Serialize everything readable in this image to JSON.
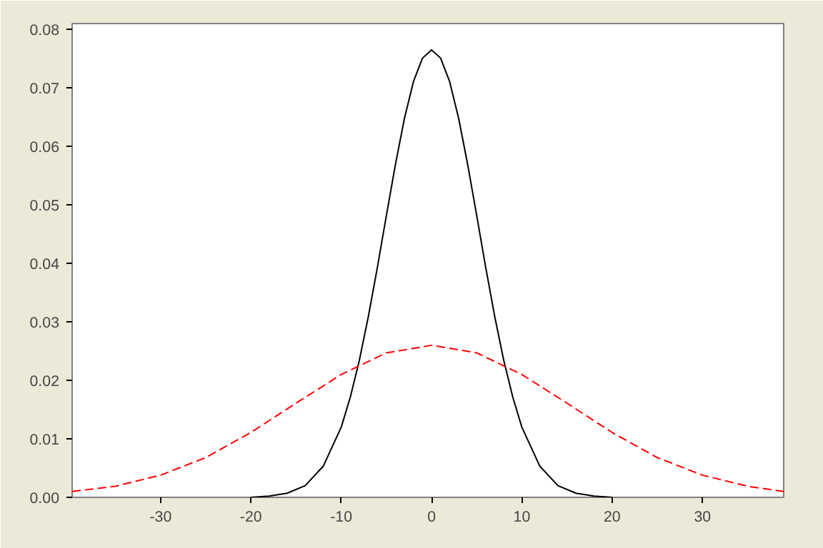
{
  "chart_data": {
    "type": "line",
    "xlim": [
      -39.8,
      39
    ],
    "ylim": [
      0,
      0.081
    ],
    "xticks": [
      -30,
      -20,
      -10,
      0,
      10,
      20,
      30
    ],
    "yticks": [
      {
        "value": 0,
        "label": "0.00"
      },
      {
        "value": 0.01,
        "label": "0.01"
      },
      {
        "value": 0.02,
        "label": "0.02"
      },
      {
        "value": 0.03,
        "label": "0.03"
      },
      {
        "value": 0.04,
        "label": "0.04"
      },
      {
        "value": 0.05,
        "label": "0.05"
      },
      {
        "value": 0.06,
        "label": "0.06"
      },
      {
        "value": 0.07,
        "label": "0.07"
      },
      {
        "value": 0.08,
        "label": "0.08"
      }
    ],
    "marker": "none",
    "series": [
      {
        "color": "#000000",
        "line_style": "solid",
        "x": [
          -20,
          -18,
          -16,
          -14,
          -12,
          -10,
          -9,
          -8,
          -7,
          -6,
          -5,
          -4,
          -3,
          -2,
          -1,
          0,
          1,
          2,
          3,
          4,
          5,
          6,
          7,
          8,
          9,
          10,
          12,
          14,
          16,
          18,
          20
        ],
        "values": [
          0.0,
          0.0002,
          0.0007,
          0.002,
          0.0053,
          0.012,
          0.0171,
          0.0234,
          0.0309,
          0.0393,
          0.0482,
          0.0569,
          0.0648,
          0.0711,
          0.0751,
          0.0765,
          0.0751,
          0.0711,
          0.0648,
          0.0569,
          0.0482,
          0.0393,
          0.0309,
          0.0234,
          0.0171,
          0.012,
          0.0053,
          0.002,
          0.0007,
          0.0002,
          0.0
        ]
      },
      {
        "color": "#ff0000",
        "line_style": "dashed",
        "x": [
          -39.8,
          -35,
          -30,
          -25,
          -20,
          -15,
          -10,
          -5,
          0,
          5,
          10,
          15,
          20,
          25,
          30,
          35,
          39
        ],
        "values": [
          0.001,
          0.0019,
          0.0038,
          0.0068,
          0.0111,
          0.0161,
          0.021,
          0.0247,
          0.026,
          0.0247,
          0.021,
          0.0161,
          0.0111,
          0.0068,
          0.0038,
          0.0019,
          0.001
        ]
      }
    ]
  }
}
